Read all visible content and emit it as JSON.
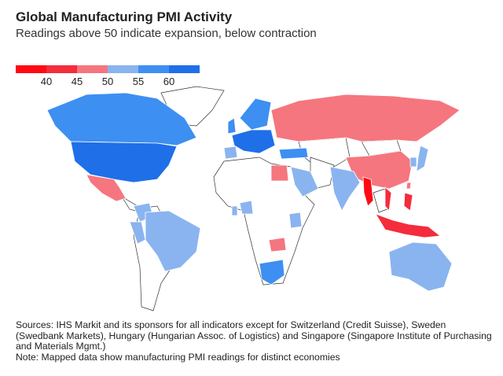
{
  "header": {
    "title": "Global Manufacturing PMI Activity",
    "subtitle": "Readings above 50 indicate expansion, below contraction"
  },
  "legend": {
    "ticks": [
      "40",
      "45",
      "50",
      "55",
      "60"
    ],
    "colors": [
      "#ff0a14",
      "#f42c3c",
      "#f5767e",
      "#8ab4f0",
      "#3d8ff2",
      "#1f6fe8"
    ]
  },
  "map_fills": {
    "canada": 4,
    "usa": 5,
    "mexico": 2,
    "brazil": 3,
    "colombia": 3,
    "peru": 3,
    "europe_core": 5,
    "europe_north": 4,
    "uk": 4,
    "spain": 3,
    "russia": 2,
    "china": 2,
    "india": 3,
    "myanmar": 0,
    "vietnam": 1,
    "indonesia": 1,
    "philippines": 1,
    "japan": 3,
    "korea": 3,
    "taiwan": 2,
    "australia": 3,
    "saudi": 3,
    "egypt": 2,
    "turkey": 4,
    "south_africa": 4,
    "kenya": 3,
    "ghana": 3,
    "zambia": 2,
    "nigeria": 3
  },
  "footer": {
    "sources": "Sources: IHS Markit and its sponsors for all indicators except for Switzerland (Credit Suisse), Sweden (Swedbank Markets), Hungary (Hungarian Assoc. of Logistics) and Singapore (Singapore Institute of Purchasing and Materials Mgmt.)",
    "note": "Note: Mapped data show manufacturing PMI readings for distinct economies"
  }
}
